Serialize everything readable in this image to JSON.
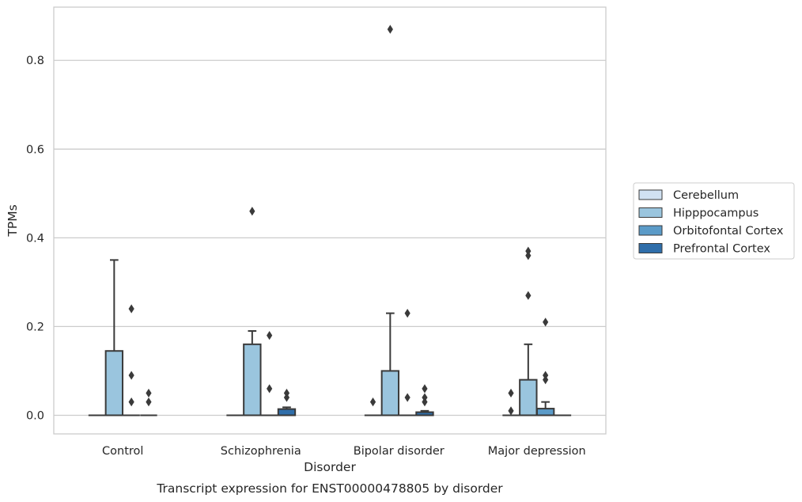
{
  "chart_data": {
    "type": "box",
    "title": "Transcript expression for ENST00000478805 by disorder",
    "xlabel": "Disorder",
    "ylabel": "TPMs",
    "ylim": [
      -0.042,
      0.92
    ],
    "yticks": [
      0.0,
      0.2,
      0.4,
      0.6,
      0.8
    ],
    "ytick_labels": [
      "0.0",
      "0.2",
      "0.4",
      "0.6",
      "0.8"
    ],
    "grid": true,
    "legend_position": "right",
    "categories": [
      "Control",
      "Schizophrenia",
      "Bipolar disorder",
      "Major depression"
    ],
    "series": [
      {
        "name": "Cerebellum",
        "color": "#d0e1f2",
        "boxes": [
          {
            "q1": 0,
            "median": 0,
            "q3": 0,
            "whisker_low": 0,
            "whisker_high": 0,
            "outliers": []
          },
          {
            "q1": 0,
            "median": 0,
            "q3": 0,
            "whisker_low": 0,
            "whisker_high": 0,
            "outliers": []
          },
          {
            "q1": 0,
            "median": 0,
            "q3": 0,
            "whisker_low": 0,
            "whisker_high": 0,
            "outliers": [
              0.03
            ]
          },
          {
            "q1": 0,
            "median": 0,
            "q3": 0,
            "whisker_low": 0,
            "whisker_high": 0,
            "outliers": [
              0.01,
              0.05
            ]
          }
        ]
      },
      {
        "name": "Hipppocampus",
        "color": "#9ac5de",
        "boxes": [
          {
            "q1": 0,
            "median": 0,
            "q3": 0.145,
            "whisker_low": 0,
            "whisker_high": 0.35,
            "outliers": []
          },
          {
            "q1": 0,
            "median": 0,
            "q3": 0.16,
            "whisker_low": 0,
            "whisker_high": 0.19,
            "outliers": [
              0.46
            ]
          },
          {
            "q1": 0,
            "median": 0,
            "q3": 0.1,
            "whisker_low": 0,
            "whisker_high": 0.23,
            "outliers": [
              0.87
            ]
          },
          {
            "q1": 0,
            "median": 0,
            "q3": 0.08,
            "whisker_low": 0,
            "whisker_high": 0.16,
            "outliers": [
              0.27,
              0.36,
              0.37
            ]
          }
        ]
      },
      {
        "name": "Orbitofontal Cortex",
        "color": "#5b9bc8",
        "boxes": [
          {
            "q1": 0,
            "median": 0,
            "q3": 0,
            "whisker_low": 0,
            "whisker_high": 0,
            "outliers": [
              0.03,
              0.09,
              0.24
            ]
          },
          {
            "q1": 0,
            "median": 0,
            "q3": 0,
            "whisker_low": 0,
            "whisker_high": 0,
            "outliers": [
              0.06,
              0.18
            ]
          },
          {
            "q1": 0,
            "median": 0,
            "q3": 0,
            "whisker_low": 0,
            "whisker_high": 0,
            "outliers": [
              0.04,
              0.23
            ]
          },
          {
            "q1": 0,
            "median": 0,
            "q3": 0.015,
            "whisker_low": 0,
            "whisker_high": 0.03,
            "outliers": [
              0.08,
              0.09,
              0.21
            ]
          }
        ]
      },
      {
        "name": "Prefrontal Cortex",
        "color": "#2f6eaa",
        "boxes": [
          {
            "q1": 0,
            "median": 0,
            "q3": 0,
            "whisker_low": 0,
            "whisker_high": 0,
            "outliers": [
              0.03,
              0.05
            ]
          },
          {
            "q1": 0,
            "median": 0,
            "q3": 0.014,
            "whisker_low": 0,
            "whisker_high": 0.018,
            "outliers": [
              0.04,
              0.05
            ]
          },
          {
            "q1": 0,
            "median": 0,
            "q3": 0.007,
            "whisker_low": 0,
            "whisker_high": 0.01,
            "outliers": [
              0.03,
              0.04,
              0.06
            ]
          },
          {
            "q1": 0,
            "median": 0,
            "q3": 0,
            "whisker_low": 0,
            "whisker_high": 0,
            "outliers": []
          }
        ]
      }
    ]
  }
}
